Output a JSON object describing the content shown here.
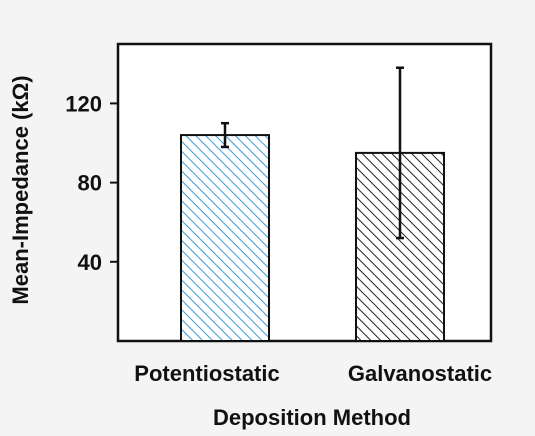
{
  "chart_data": {
    "type": "bar",
    "categories": [
      "Potentiostatic",
      "Galvanostatic"
    ],
    "values": [
      104,
      95
    ],
    "error_low": [
      98,
      52
    ],
    "error_high": [
      110,
      138
    ],
    "xlabel": "Deposition Method",
    "ylabel": "Mean-Impedance (kΩ)",
    "ylim": [
      0,
      150
    ],
    "yticks": [
      40,
      80,
      120
    ],
    "bar_colors": [
      "#3a9ad9",
      "#222222"
    ],
    "bar_fill": "diagonal-hatch",
    "grid": false
  }
}
